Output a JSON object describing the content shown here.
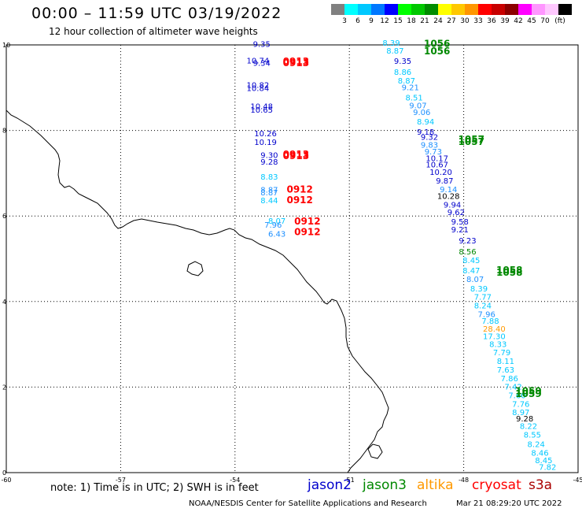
{
  "header": {
    "title": "00:00 – 11:59 UTC 03/19/2022",
    "subtitle": "12 hour collection of altimeter wave heights"
  },
  "scale": {
    "unit": "(ft)",
    "swatches": [
      {
        "color": "#808080",
        "label": ""
      },
      {
        "color": "#00ffff",
        "label": "3"
      },
      {
        "color": "#00c8ff",
        "label": "6"
      },
      {
        "color": "#0078ff",
        "label": "9"
      },
      {
        "color": "#0000ff",
        "label": "12"
      },
      {
        "color": "#00ff00",
        "label": "15"
      },
      {
        "color": "#00c800",
        "label": "18"
      },
      {
        "color": "#008c00",
        "label": "21"
      },
      {
        "color": "#ffff00",
        "label": "24"
      },
      {
        "color": "#ffc800",
        "label": "27"
      },
      {
        "color": "#ff9600",
        "label": "30"
      },
      {
        "color": "#ff0000",
        "label": "33"
      },
      {
        "color": "#c80000",
        "label": "36"
      },
      {
        "color": "#8c0000",
        "label": "39"
      },
      {
        "color": "#ff00ff",
        "label": "42"
      },
      {
        "color": "#ff96ff",
        "label": "45"
      },
      {
        "color": "#ffc8ff",
        "label": "70"
      },
      {
        "color": "#000000",
        "label": ""
      }
    ]
  },
  "axes": {
    "lon_ticks": [
      "-60",
      "-57",
      "-54",
      "-51",
      "-48",
      "-45"
    ],
    "lat_ticks": [
      "10",
      "8",
      "6",
      "4",
      "2",
      "0"
    ],
    "lon_range": [
      -60,
      -45
    ],
    "lat_range": [
      0,
      10
    ]
  },
  "chart_data": {
    "type": "scatter",
    "colors": {
      "jason2": "#0000cc",
      "jason3": "#008800",
      "altika": "#ff9900",
      "cryosat": "#ff0000",
      "s3a": "#00c8ff",
      "mid": "#1e90ff",
      "black": "#000000"
    },
    "time_labels": [
      {
        "text": "0913",
        "lon": -52.4,
        "lat": 9.54,
        "sat": "cryosat"
      },
      {
        "text": "0913",
        "lon": -52.4,
        "lat": 9.5,
        "sat": "cryosat"
      },
      {
        "text": "0913",
        "lon": -52.4,
        "lat": 7.37,
        "sat": "cryosat"
      },
      {
        "text": "0913",
        "lon": -52.4,
        "lat": 7.33,
        "sat": "cryosat"
      },
      {
        "text": "0912",
        "lon": -52.3,
        "lat": 6.55,
        "sat": "cryosat"
      },
      {
        "text": "0912",
        "lon": -52.3,
        "lat": 6.3,
        "sat": "cryosat"
      },
      {
        "text": "0912",
        "lon": -52.1,
        "lat": 5.8,
        "sat": "cryosat"
      },
      {
        "text": "0912",
        "lon": -52.1,
        "lat": 5.55,
        "sat": "cryosat"
      },
      {
        "text": "1056",
        "lon": -48.7,
        "lat": 9.95,
        "sat": "jason3"
      },
      {
        "text": "1056",
        "lon": -48.7,
        "lat": 9.78,
        "sat": "jason3"
      },
      {
        "text": "1057",
        "lon": -47.8,
        "lat": 7.72,
        "sat": "jason3"
      },
      {
        "text": "1057",
        "lon": -47.8,
        "lat": 7.66,
        "sat": "jason3"
      },
      {
        "text": "1058",
        "lon": -46.8,
        "lat": 4.66,
        "sat": "jason3"
      },
      {
        "text": "1058",
        "lon": -46.8,
        "lat": 4.6,
        "sat": "jason3"
      },
      {
        "text": "1059",
        "lon": -46.3,
        "lat": 1.83,
        "sat": "jason3"
      },
      {
        "text": "1059",
        "lon": -46.3,
        "lat": 1.77,
        "sat": "jason3"
      }
    ],
    "points": [
      {
        "lon": -53.3,
        "lat": 9.95,
        "value": "9.35",
        "sat": "jason2"
      },
      {
        "lon": -53.4,
        "lat": 9.57,
        "value": "10.74",
        "sat": "jason2"
      },
      {
        "lon": -53.3,
        "lat": 9.51,
        "value": "9.34",
        "sat": "jason2"
      },
      {
        "lon": -53.4,
        "lat": 9.0,
        "value": "10.82",
        "sat": "jason2"
      },
      {
        "lon": -53.4,
        "lat": 8.92,
        "value": "10.84",
        "sat": "jason2"
      },
      {
        "lon": -53.3,
        "lat": 8.5,
        "value": "10.48",
        "sat": "jason2"
      },
      {
        "lon": -53.3,
        "lat": 8.42,
        "value": "10.65",
        "sat": "jason2"
      },
      {
        "lon": -53.2,
        "lat": 7.86,
        "value": "10.26",
        "sat": "jason2"
      },
      {
        "lon": -53.2,
        "lat": 7.66,
        "value": "10.19",
        "sat": "jason2"
      },
      {
        "lon": -53.1,
        "lat": 7.36,
        "value": "9.30",
        "sat": "jason2"
      },
      {
        "lon": -53.1,
        "lat": 7.2,
        "value": "9.28",
        "sat": "jason2"
      },
      {
        "lon": -53.1,
        "lat": 6.85,
        "value": "8.83",
        "sat": "s3a"
      },
      {
        "lon": -53.1,
        "lat": 6.55,
        "value": "8.87",
        "sat": "mid"
      },
      {
        "lon": -53.1,
        "lat": 6.48,
        "value": "8.87",
        "sat": "mid"
      },
      {
        "lon": -53.1,
        "lat": 6.3,
        "value": "8.44",
        "sat": "s3a"
      },
      {
        "lon": -52.9,
        "lat": 5.82,
        "value": "8.07",
        "sat": "s3a"
      },
      {
        "lon": -53.0,
        "lat": 5.73,
        "value": "7.96",
        "sat": "mid"
      },
      {
        "lon": -52.9,
        "lat": 5.52,
        "value": "6.43",
        "sat": "mid"
      },
      {
        "lon": -49.9,
        "lat": 9.98,
        "value": "8.39",
        "sat": "s3a"
      },
      {
        "lon": -49.8,
        "lat": 9.8,
        "value": "8.87",
        "sat": "s3a"
      },
      {
        "lon": -49.6,
        "lat": 9.56,
        "value": "9.35",
        "sat": "jason2"
      },
      {
        "lon": -49.6,
        "lat": 9.3,
        "value": "8.86",
        "sat": "s3a"
      },
      {
        "lon": -49.5,
        "lat": 9.1,
        "value": "8.87",
        "sat": "s3a"
      },
      {
        "lon": -49.4,
        "lat": 8.94,
        "value": "9.21",
        "sat": "mid"
      },
      {
        "lon": -49.3,
        "lat": 8.7,
        "value": "8.51",
        "sat": "s3a"
      },
      {
        "lon": -49.2,
        "lat": 8.52,
        "value": "9.07",
        "sat": "mid"
      },
      {
        "lon": -49.1,
        "lat": 8.36,
        "value": "9.06",
        "sat": "mid"
      },
      {
        "lon": -49.0,
        "lat": 8.14,
        "value": "8.94",
        "sat": "s3a"
      },
      {
        "lon": -49.0,
        "lat": 7.9,
        "value": "9.18",
        "sat": "jason2"
      },
      {
        "lon": -48.9,
        "lat": 7.78,
        "value": "9.32",
        "sat": "jason2"
      },
      {
        "lon": -48.9,
        "lat": 7.6,
        "value": "9.83",
        "sat": "mid"
      },
      {
        "lon": -48.8,
        "lat": 7.44,
        "value": "9.73",
        "sat": "mid"
      },
      {
        "lon": -48.7,
        "lat": 7.28,
        "value": "10.17",
        "sat": "jason2"
      },
      {
        "lon": -48.7,
        "lat": 7.14,
        "value": "10.67",
        "sat": "jason2"
      },
      {
        "lon": -48.6,
        "lat": 6.96,
        "value": "10.20",
        "sat": "jason2"
      },
      {
        "lon": -48.5,
        "lat": 6.76,
        "value": "9.87",
        "sat": "jason2"
      },
      {
        "lon": -48.4,
        "lat": 6.56,
        "value": "9.14",
        "sat": "mid"
      },
      {
        "lon": -48.4,
        "lat": 6.4,
        "value": "10.28",
        "sat": "black"
      },
      {
        "lon": -48.3,
        "lat": 6.2,
        "value": "9.94",
        "sat": "jason2"
      },
      {
        "lon": -48.2,
        "lat": 6.02,
        "value": "9.62",
        "sat": "jason2"
      },
      {
        "lon": -48.1,
        "lat": 5.8,
        "value": "9.58",
        "sat": "jason2"
      },
      {
        "lon": -48.1,
        "lat": 5.62,
        "value": "9.21",
        "sat": "jason2"
      },
      {
        "lon": -47.9,
        "lat": 5.36,
        "value": "9.23",
        "sat": "jason2"
      },
      {
        "lon": -47.9,
        "lat": 5.1,
        "value": "8.56",
        "sat": "jason3"
      },
      {
        "lon": -47.8,
        "lat": 4.9,
        "value": "8.45",
        "sat": "s3a"
      },
      {
        "lon": -47.8,
        "lat": 4.66,
        "value": "8.47",
        "sat": "s3a"
      },
      {
        "lon": -47.7,
        "lat": 4.46,
        "value": "8.07",
        "sat": "mid"
      },
      {
        "lon": -47.6,
        "lat": 4.24,
        "value": "8.39",
        "sat": "s3a"
      },
      {
        "lon": -47.5,
        "lat": 4.04,
        "value": "7.77",
        "sat": "s3a"
      },
      {
        "lon": -47.5,
        "lat": 3.84,
        "value": "8.24",
        "sat": "s3a"
      },
      {
        "lon": -47.4,
        "lat": 3.64,
        "value": "7.96",
        "sat": "mid"
      },
      {
        "lon": -47.3,
        "lat": 3.48,
        "value": "7.88",
        "sat": "s3a"
      },
      {
        "lon": -47.2,
        "lat": 3.3,
        "value": "28.40",
        "sat": "altika"
      },
      {
        "lon": -47.2,
        "lat": 3.12,
        "value": "17.30",
        "sat": "s3a"
      },
      {
        "lon": -47.1,
        "lat": 2.94,
        "value": "8.33",
        "sat": "s3a"
      },
      {
        "lon": -47.0,
        "lat": 2.74,
        "value": "7.79",
        "sat": "s3a"
      },
      {
        "lon": -46.9,
        "lat": 2.54,
        "value": "8.11",
        "sat": "s3a"
      },
      {
        "lon": -46.9,
        "lat": 2.34,
        "value": "7.63",
        "sat": "s3a"
      },
      {
        "lon": -46.8,
        "lat": 2.14,
        "value": "7.86",
        "sat": "s3a"
      },
      {
        "lon": -46.7,
        "lat": 1.94,
        "value": "7.42",
        "sat": "s3a"
      },
      {
        "lon": -46.6,
        "lat": 1.74,
        "value": "7.60",
        "sat": "s3a"
      },
      {
        "lon": -46.5,
        "lat": 1.54,
        "value": "7.76",
        "sat": "s3a"
      },
      {
        "lon": -46.5,
        "lat": 1.34,
        "value": "8.97",
        "sat": "s3a"
      },
      {
        "lon": -46.4,
        "lat": 1.2,
        "value": "9.28",
        "sat": "black"
      },
      {
        "lon": -46.3,
        "lat": 1.02,
        "value": "8.22",
        "sat": "s3a"
      },
      {
        "lon": -46.2,
        "lat": 0.82,
        "value": "8.55",
        "sat": "s3a"
      },
      {
        "lon": -46.1,
        "lat": 0.6,
        "value": "8.24",
        "sat": "s3a"
      },
      {
        "lon": -46.0,
        "lat": 0.4,
        "value": "8.46",
        "sat": "s3a"
      },
      {
        "lon": -45.9,
        "lat": 0.22,
        "value": "8.45",
        "sat": "s3a"
      },
      {
        "lon": -45.8,
        "lat": 0.06,
        "value": "7.82",
        "sat": "s3a"
      }
    ]
  },
  "footer": {
    "note": "note: 1) Time is in UTC; 2) SWH is in feet",
    "sat_labels": [
      {
        "text": "jason2",
        "color": "#0000cc"
      },
      {
        "text": "jason3",
        "color": "#008800"
      },
      {
        "text": "altika",
        "color": "#ff9900"
      },
      {
        "text": "cryosat",
        "color": "#ff0000"
      },
      {
        "text": "s3a",
        "color": "#aa0000"
      }
    ],
    "credit": "NOAA/NESDIS Center for Satellite Applications and Research",
    "timestamp": "Mar 21 08:29:20 UTC 2022"
  }
}
